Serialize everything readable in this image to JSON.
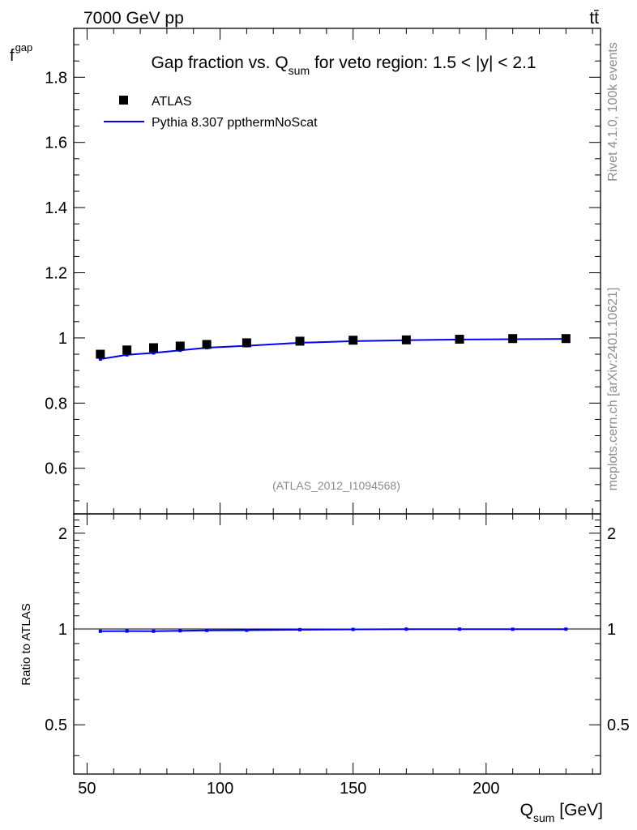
{
  "header": {
    "left_label": "7000 GeV pp",
    "right_label": "tt̄"
  },
  "side_labels": {
    "rivet": "Rivet 4.1.0,  100k events",
    "mcplots": "mcplots.cern.ch [arXiv:2401.10621]"
  },
  "colors": {
    "data": "#000000",
    "mc": "#0000ff",
    "frame": "#000000",
    "watermark": "#8c8c8c"
  },
  "chart_data": [
    {
      "type": "scatter",
      "title": {
        "pre": "Gap fraction vs. Q",
        "sub": "sum",
        "post": " for veto region: 1.5 < |y| < 2.1"
      },
      "ylabel": {
        "main": "f",
        "sub": "gap"
      },
      "analysis_label": "(ATLAS_2012_I1094568)",
      "xlim": [
        45,
        243
      ],
      "ylim": [
        0.46,
        1.95
      ],
      "yticks": [
        "0.6",
        "0.8",
        "1",
        "1.2",
        "1.4",
        "1.6",
        "1.8"
      ],
      "legend": {
        "placement": "top-left",
        "entries": [
          "ATLAS",
          "Pythia 8.307 ppthermNoScat"
        ]
      },
      "series": [
        {
          "name": "ATLAS",
          "x": [
            55,
            65,
            75,
            85,
            95,
            110,
            130,
            150,
            170,
            190,
            210,
            230
          ],
          "y": [
            0.95,
            0.963,
            0.97,
            0.975,
            0.98,
            0.985,
            0.99,
            0.993,
            0.994,
            0.996,
            0.998,
            0.998
          ]
        },
        {
          "name": "Pythia 8.307 ppthermNoScat",
          "x": [
            55,
            65,
            75,
            85,
            95,
            110,
            130,
            150,
            170,
            190,
            210,
            230
          ],
          "y": [
            0.935,
            0.948,
            0.954,
            0.962,
            0.97,
            0.976,
            0.985,
            0.99,
            0.993,
            0.995,
            0.996,
            0.997
          ]
        }
      ]
    },
    {
      "type": "line",
      "ylabel": "Ratio to ATLAS",
      "xlabel": {
        "main": "Q",
        "sub": "sum",
        "post": " [GeV]"
      },
      "xlim": [
        45,
        243
      ],
      "ylim": [
        0.35,
        2.3
      ],
      "xticks": [
        "50",
        "100",
        "150",
        "200"
      ],
      "yticks": [
        "0.5",
        "1",
        "2"
      ],
      "series": [
        {
          "name": "Pythia 8.307 ppthermNoScat",
          "x": [
            55,
            65,
            75,
            85,
            95,
            110,
            130,
            150,
            170,
            190,
            210,
            230
          ],
          "y": [
            0.984,
            0.985,
            0.984,
            0.987,
            0.99,
            0.991,
            0.995,
            0.997,
            0.999,
            0.999,
            0.998,
            0.999
          ]
        }
      ]
    }
  ]
}
